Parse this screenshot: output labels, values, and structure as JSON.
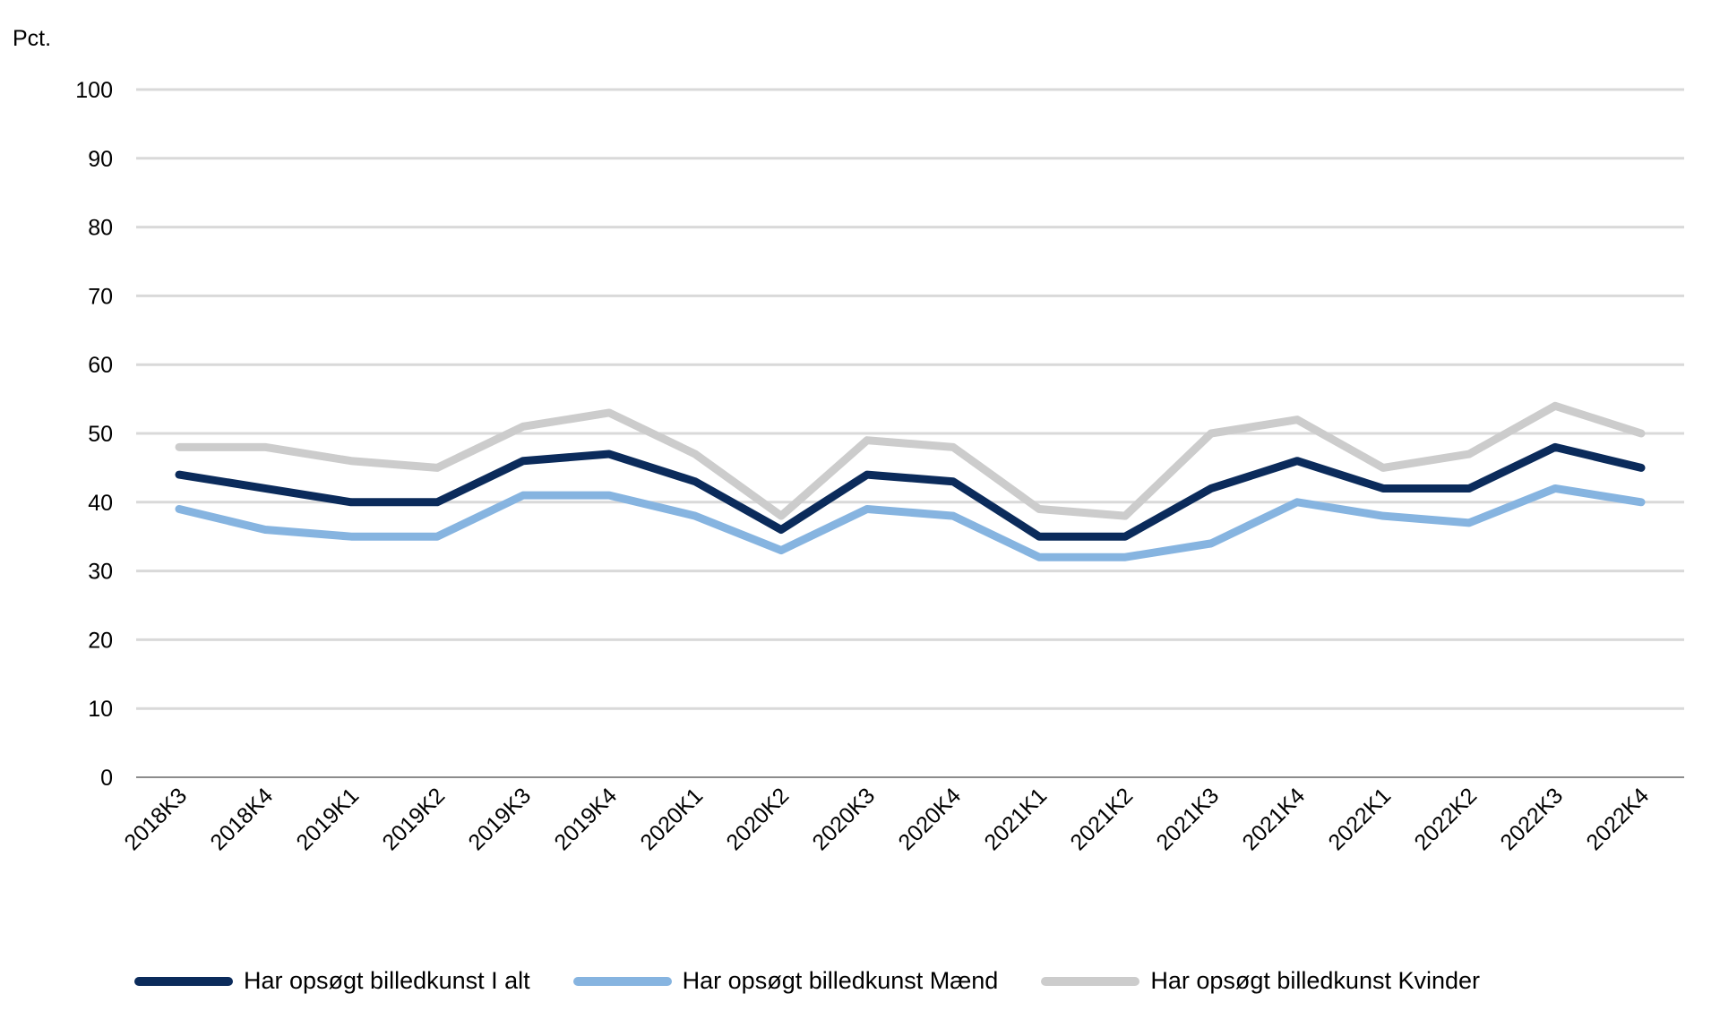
{
  "chart_data": {
    "type": "line",
    "unit_label": "Pct.",
    "ylim": [
      0,
      100
    ],
    "yticks": [
      0,
      10,
      20,
      30,
      40,
      50,
      60,
      70,
      80,
      90,
      100
    ],
    "categories": [
      "2018K3",
      "2018K4",
      "2019K1",
      "2019K2",
      "2019K3",
      "2019K4",
      "2020K1",
      "2020K2",
      "2020K3",
      "2020K4",
      "2021K1",
      "2021K2",
      "2021K3",
      "2021K4",
      "2022K1",
      "2022K2",
      "2022K3",
      "2022K4"
    ],
    "series": [
      {
        "name": "Har opsøgt billedkunst I alt",
        "color": "#0b2b5b",
        "values": [
          44,
          42,
          40,
          40,
          46,
          47,
          43,
          36,
          44,
          43,
          35,
          35,
          42,
          46,
          42,
          42,
          48,
          45
        ]
      },
      {
        "name": "Har opsøgt billedkunst Mænd",
        "color": "#86b4e0",
        "values": [
          39,
          36,
          35,
          35,
          41,
          41,
          38,
          33,
          39,
          38,
          32,
          32,
          34,
          40,
          38,
          37,
          42,
          40
        ]
      },
      {
        "name": "Har opsøgt billedkunst Kvinder",
        "color": "#cccccc",
        "values": [
          48,
          48,
          46,
          45,
          51,
          53,
          47,
          38,
          49,
          48,
          39,
          38,
          50,
          52,
          45,
          47,
          54,
          50
        ]
      }
    ],
    "grid": true,
    "legend_position": "bottom"
  }
}
